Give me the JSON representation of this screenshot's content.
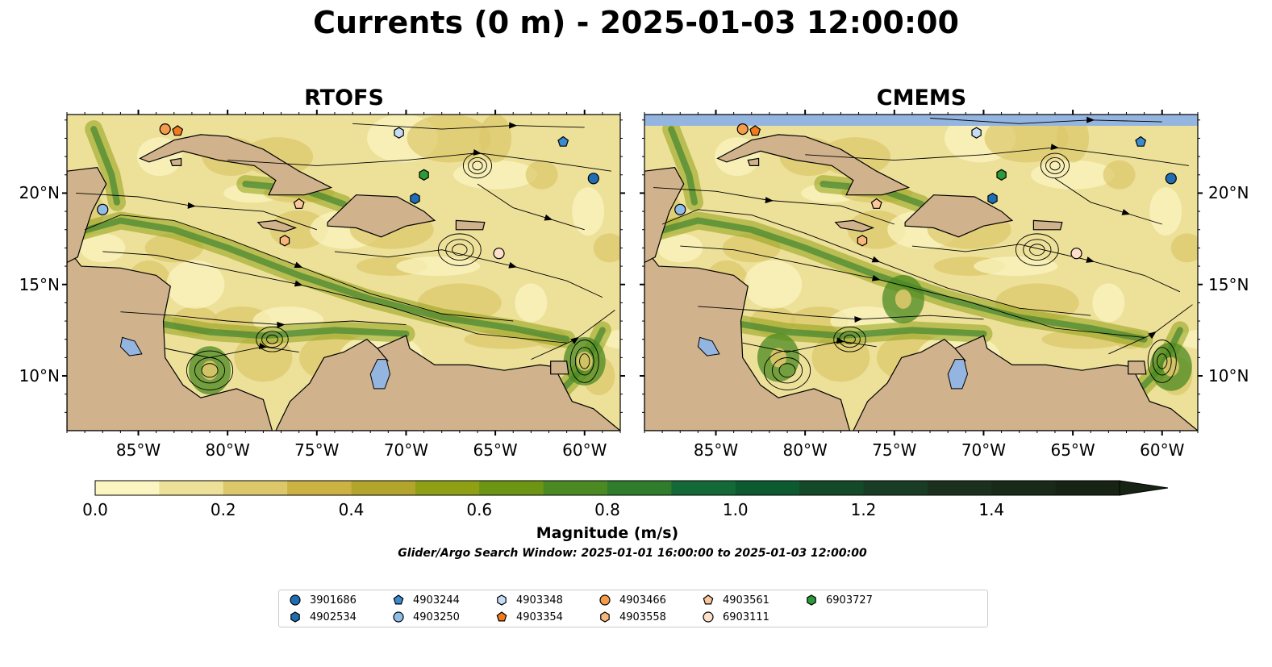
{
  "figure": {
    "title": "Currents (0 m) - 2025-01-03 12:00:00",
    "subtitle": "Glider/Argo Search Window: 2025-01-01 16:00:00 to 2025-01-03 12:00:00"
  },
  "panels": [
    {
      "title": "RTOFS"
    },
    {
      "title": "CMEMS"
    }
  ],
  "axes": {
    "lon_range": [
      -89,
      -58
    ],
    "lat_range": [
      7,
      24.3
    ],
    "lon_ticks": [
      {
        "v": -85,
        "label": "85°W"
      },
      {
        "v": -80,
        "label": "80°W"
      },
      {
        "v": -75,
        "label": "75°W"
      },
      {
        "v": -70,
        "label": "70°W"
      },
      {
        "v": -65,
        "label": "65°W"
      },
      {
        "v": -60,
        "label": "60°W"
      }
    ],
    "lat_ticks": [
      {
        "v": 20,
        "label": "20°N"
      },
      {
        "v": 15,
        "label": "15°N"
      },
      {
        "v": 10,
        "label": "10°N"
      }
    ]
  },
  "colorbar": {
    "label": "Magnitude (m/s)",
    "min": 0.0,
    "max": 1.6,
    "extend": "max",
    "ticks": [
      "0.0",
      "0.2",
      "0.4",
      "0.6",
      "0.8",
      "1.0",
      "1.2",
      "1.4"
    ],
    "colors": [
      "#fbf5c2",
      "#ede099",
      "#dcc86a",
      "#cbb243",
      "#b3a52b",
      "#8fa015",
      "#6c9514",
      "#4b8a22",
      "#2e7c2c",
      "#146a36",
      "#0e5a30",
      "#144a2a",
      "#183d24",
      "#1b311e",
      "#1a2a18",
      "#172314"
    ]
  },
  "map_colors": {
    "land": "#d0b28c",
    "water_bodies": "#93b5e0",
    "coast": "#000000"
  },
  "legend": [
    {
      "id": "3901686",
      "marker": "circle",
      "color": "#1f6eb4"
    },
    {
      "id": "4902534",
      "marker": "hexagon",
      "color": "#1f6eb4"
    },
    {
      "id": "4903244",
      "marker": "pentagon",
      "color": "#3a8bd0"
    },
    {
      "id": "4903250",
      "marker": "circle",
      "color": "#8fbde6"
    },
    {
      "id": "4903348",
      "marker": "hexagon",
      "color": "#c6dcf4"
    },
    {
      "id": "4903354",
      "marker": "pentagon",
      "color": "#f07a1c"
    },
    {
      "id": "4903466",
      "marker": "circle",
      "color": "#f59c4a"
    },
    {
      "id": "4903558",
      "marker": "hexagon",
      "color": "#f8b67a"
    },
    {
      "id": "4903561",
      "marker": "pentagon",
      "color": "#fbc79b"
    },
    {
      "id": "6903111",
      "marker": "circle",
      "color": "#fde0cb"
    },
    {
      "id": "6903727",
      "marker": "hexagon",
      "color": "#2a9a3a"
    }
  ],
  "floats": [
    {
      "id": "3901686",
      "lon": -59.5,
      "lat": 20.8
    },
    {
      "id": "4902534",
      "lon": -69.5,
      "lat": 19.7
    },
    {
      "id": "4903244",
      "lon": -61.2,
      "lat": 22.8
    },
    {
      "id": "4903250",
      "lon": -87.0,
      "lat": 19.1
    },
    {
      "id": "4903348",
      "lon": -70.4,
      "lat": 23.3
    },
    {
      "id": "4903354",
      "lon": -82.8,
      "lat": 23.4
    },
    {
      "id": "4903466",
      "lon": -83.5,
      "lat": 23.5
    },
    {
      "id": "4903558",
      "lon": -76.8,
      "lat": 17.4
    },
    {
      "id": "4903561",
      "lon": -76.0,
      "lat": 19.4
    },
    {
      "id": "6903111",
      "lon": -64.8,
      "lat": 16.7
    },
    {
      "id": "6903727",
      "lon": -69.0,
      "lat": 21.0
    }
  ]
}
